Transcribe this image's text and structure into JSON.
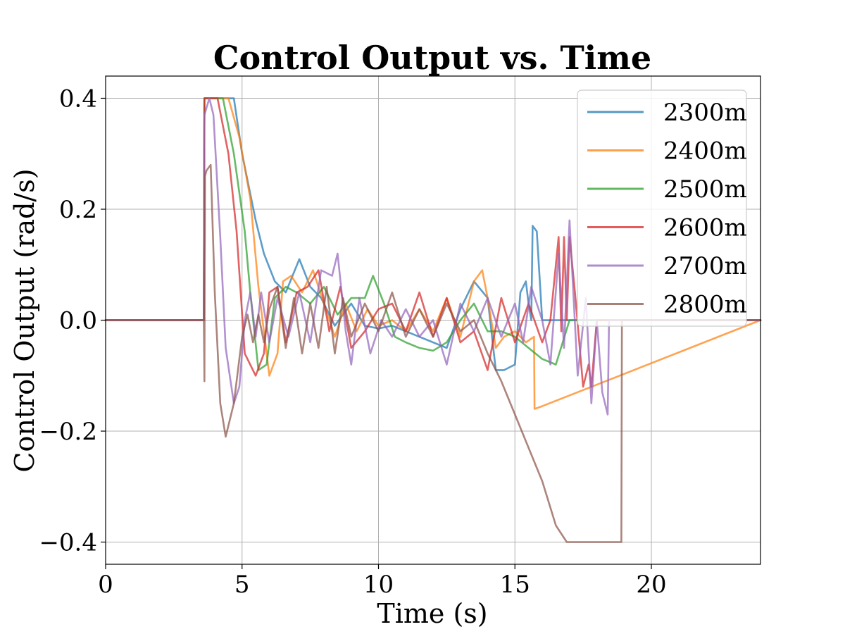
{
  "chart_data": {
    "type": "line",
    "title": "Control Output vs. Time",
    "xlabel": "Time (s)",
    "ylabel": "Control Output (rad/s)",
    "xlim": [
      0,
      24
    ],
    "ylim": [
      -0.44,
      0.44
    ],
    "xticks": [
      0,
      5,
      10,
      15,
      20
    ],
    "yticks": [
      -0.4,
      -0.2,
      0.0,
      0.2,
      0.4
    ],
    "xtick_labels": [
      "0",
      "5",
      "10",
      "15",
      "20"
    ],
    "ytick_labels": [
      "−0.4",
      "−0.2",
      "0.0",
      "0.2",
      "0.4"
    ],
    "grid": true,
    "legend_position": "top-right",
    "series": [
      {
        "name": "2300m",
        "color": "#1f77b4",
        "x": [
          0,
          3.6,
          3.62,
          4.7,
          5.0,
          5.5,
          5.8,
          6.2,
          6.6,
          7.1,
          7.5,
          7.9,
          8.4,
          9.0,
          9.5,
          10.0,
          10.5,
          11.0,
          11.5,
          12.0,
          12.5,
          13.0,
          13.5,
          14.0,
          14.3,
          14.6,
          15.0,
          15.2,
          15.4,
          15.5,
          15.6,
          15.65,
          15.8,
          16.0,
          24
        ],
        "y": [
          0,
          0,
          0.4,
          0.4,
          0.3,
          0.18,
          0.12,
          0.07,
          0.05,
          0.11,
          0.06,
          0.04,
          -0.01,
          0.03,
          -0.01,
          -0.015,
          -0.01,
          -0.02,
          -0.03,
          -0.04,
          -0.05,
          0.02,
          0.07,
          0.04,
          -0.09,
          -0.09,
          -0.08,
          0.05,
          0.07,
          0.03,
          0.0,
          0.17,
          0.16,
          0.0,
          0
        ]
      },
      {
        "name": "2400m",
        "color": "#ff7f0e",
        "x": [
          0,
          3.6,
          3.62,
          4.5,
          4.9,
          5.3,
          5.6,
          6.0,
          6.3,
          6.5,
          6.8,
          7.2,
          7.6,
          8.0,
          8.4,
          8.8,
          9.2,
          9.6,
          10.0,
          10.5,
          11.0,
          11.5,
          12.0,
          12.5,
          13.0,
          13.5,
          13.8,
          14.0,
          14.3,
          14.6,
          15.0,
          15.4,
          15.7,
          15.72,
          16.0,
          24
        ],
        "y": [
          0,
          0,
          0.4,
          0.4,
          0.33,
          0.22,
          0.06,
          -0.1,
          -0.06,
          0.07,
          0.08,
          0.05,
          0.09,
          0.03,
          -0.03,
          0.03,
          -0.02,
          0.02,
          -0.01,
          0.0,
          -0.02,
          0.02,
          -0.02,
          0.04,
          -0.03,
          0.07,
          0.09,
          0.04,
          -0.05,
          -0.03,
          -0.02,
          -0.04,
          -0.03,
          -0.16,
          -0.155,
          0
        ]
      },
      {
        "name": "2500m",
        "color": "#2ca02c",
        "x": [
          0,
          3.6,
          3.62,
          4.3,
          4.7,
          5.1,
          5.3,
          5.6,
          5.9,
          6.2,
          6.6,
          7.0,
          7.5,
          8.0,
          8.5,
          9.0,
          9.5,
          9.8,
          10.2,
          10.6,
          11.0,
          11.5,
          12.0,
          12.5,
          13.0,
          13.5,
          14.0,
          14.5,
          15.0,
          15.5,
          16.0,
          16.5,
          17.0,
          24
        ],
        "y": [
          0,
          0,
          0.4,
          0.4,
          0.3,
          0.16,
          0.05,
          -0.09,
          -0.08,
          0.04,
          0.06,
          0.05,
          0.03,
          0.06,
          0.01,
          0.04,
          0.04,
          0.08,
          0.03,
          -0.03,
          -0.04,
          -0.05,
          -0.055,
          -0.04,
          0.0,
          0.03,
          -0.02,
          -0.02,
          -0.03,
          -0.05,
          -0.07,
          -0.08,
          0,
          0
        ]
      },
      {
        "name": "2600m",
        "color": "#d62728",
        "x": [
          0,
          3.6,
          3.62,
          4.1,
          4.5,
          4.8,
          5.1,
          5.5,
          5.8,
          6.0,
          6.3,
          6.6,
          7.0,
          7.4,
          7.8,
          8.2,
          8.6,
          9.0,
          9.5,
          10.0,
          10.5,
          11.0,
          11.5,
          12.0,
          12.5,
          13.0,
          13.5,
          14.0,
          14.5,
          15.0,
          15.5,
          16.0,
          16.3,
          16.6,
          16.7,
          16.8,
          16.9,
          17.0,
          17.2,
          17.5,
          17.7,
          17.8,
          18.0,
          24
        ],
        "y": [
          0,
          0,
          0.4,
          0.4,
          0.3,
          0.16,
          -0.06,
          -0.1,
          -0.06,
          0.05,
          0.06,
          -0.04,
          0.05,
          0.06,
          0.09,
          -0.02,
          0.06,
          -0.05,
          -0.02,
          0.02,
          0.03,
          -0.02,
          0.05,
          -0.03,
          0.04,
          -0.04,
          -0.02,
          -0.09,
          0.04,
          -0.04,
          0.03,
          -0.04,
          0.0,
          0.15,
          -0.02,
          0.15,
          0.0,
          0.15,
          0.05,
          -0.12,
          -0.08,
          -0.12,
          0,
          0
        ]
      },
      {
        "name": "2700m",
        "color": "#9467bd",
        "x": [
          0,
          3.6,
          3.62,
          3.8,
          3.95,
          4.2,
          4.4,
          4.7,
          4.9,
          5.1,
          5.3,
          5.5,
          5.7,
          6.0,
          6.3,
          6.7,
          7.1,
          7.5,
          7.9,
          8.3,
          8.5,
          8.8,
          9.0,
          9.3,
          9.7,
          10.1,
          10.5,
          11.0,
          11.5,
          12.0,
          12.5,
          13.0,
          13.5,
          14.0,
          14.5,
          15.0,
          15.3,
          15.6,
          16.0,
          16.3,
          16.6,
          16.8,
          17.0,
          17.3,
          17.6,
          17.8,
          18.0,
          18.2,
          18.4,
          18.45,
          24
        ],
        "y": [
          0,
          0,
          0.37,
          0.4,
          0.37,
          0.15,
          -0.05,
          -0.15,
          -0.12,
          0.0,
          0.05,
          -0.03,
          0.05,
          -0.04,
          0.04,
          -0.03,
          0.05,
          -0.04,
          0.09,
          0.08,
          0.12,
          -0.02,
          -0.08,
          0.04,
          -0.06,
          0.0,
          -0.03,
          0.02,
          -0.03,
          0.0,
          -0.08,
          0.03,
          -0.02,
          0.04,
          -0.03,
          0.03,
          -0.04,
          0.06,
          0.0,
          -0.08,
          0.12,
          -0.05,
          0.18,
          -0.1,
          0.04,
          -0.15,
          0.0,
          -0.13,
          -0.17,
          0,
          0
        ]
      },
      {
        "name": "2800m",
        "color": "#8c564b",
        "x": [
          0,
          3.6,
          3.62,
          3.64,
          3.7,
          3.85,
          4.0,
          4.2,
          4.4,
          4.7,
          5.0,
          5.2,
          5.4,
          5.6,
          5.8,
          6.0,
          6.3,
          6.6,
          6.9,
          7.2,
          7.5,
          7.8,
          8.1,
          8.4,
          8.7,
          9.0,
          9.5,
          10.0,
          10.5,
          11.0,
          11.5,
          12.0,
          12.5,
          13.0,
          13.5,
          14.0,
          14.5,
          15.0,
          15.5,
          16.0,
          16.5,
          16.9,
          17.0,
          18.5,
          18.9,
          18.92,
          24
        ],
        "y": [
          0,
          0,
          -0.11,
          0.26,
          0.27,
          0.28,
          0.05,
          -0.15,
          -0.21,
          -0.15,
          -0.03,
          0.01,
          -0.04,
          0.01,
          -0.04,
          0.02,
          0.06,
          -0.05,
          0.04,
          -0.06,
          0.03,
          -0.05,
          0.06,
          -0.06,
          0.04,
          -0.03,
          0.03,
          -0.02,
          0.05,
          -0.03,
          0.02,
          -0.03,
          0.03,
          -0.02,
          0.0,
          -0.06,
          -0.11,
          -0.17,
          -0.23,
          -0.29,
          -0.37,
          -0.4,
          -0.4,
          -0.4,
          -0.4,
          0,
          0
        ]
      }
    ]
  }
}
